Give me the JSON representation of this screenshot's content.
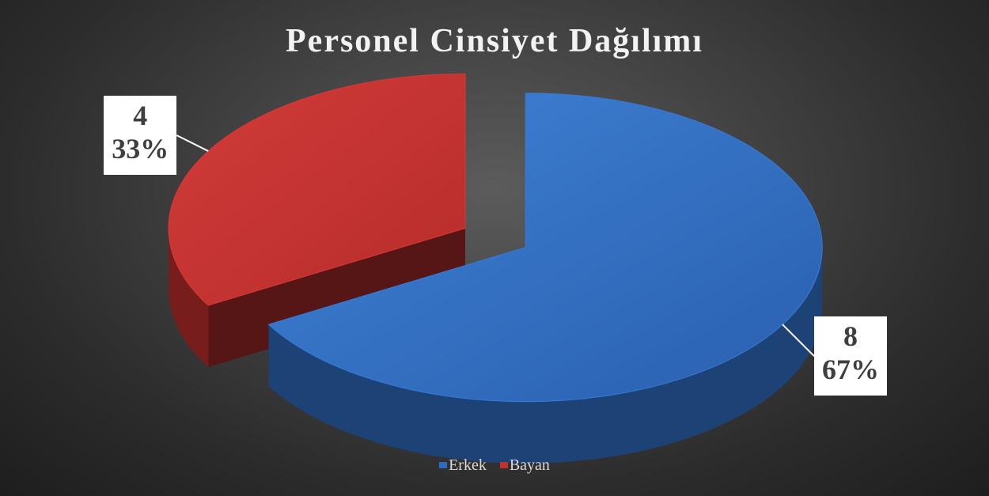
{
  "chart_data": {
    "type": "pie",
    "title": "Personel Cinsiyet Dağılımı",
    "categories": [
      "Erkek",
      "Bayan"
    ],
    "values": [
      8,
      4
    ],
    "percent_labels": [
      "67%",
      "33%"
    ],
    "colors": [
      "#2e6bbf",
      "#c0312f"
    ],
    "legend_position": "bottom",
    "style": "3d exploded"
  }
}
